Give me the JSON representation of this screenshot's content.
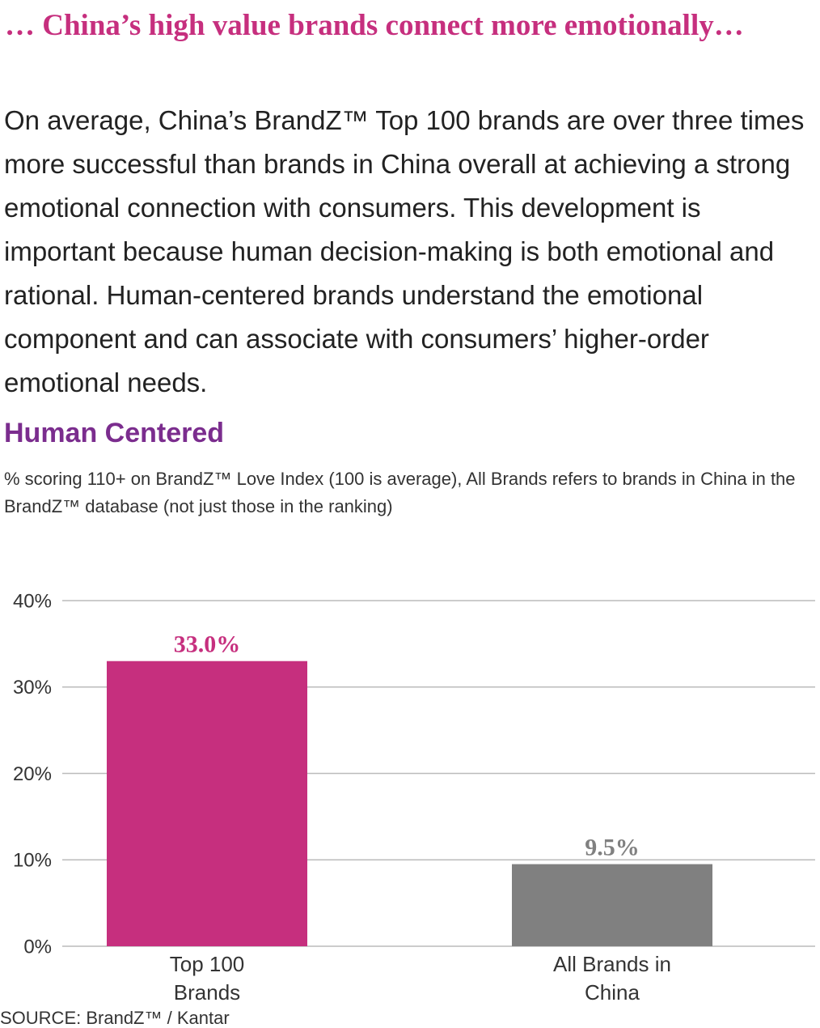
{
  "header": {
    "title": "… China’s high value brands connect more emotionally…",
    "body": "On average, China’s BrandZ™ Top 100 brands are over three times more successful than brands in China overall at achieving a strong emotional connection with consumers. This development is important because human decision-making is both emotional and rational. Human-centered brands understand the emotional component and can associate with consumers’ higher-order emotional needs."
  },
  "chart_data": {
    "type": "bar",
    "title": "Human Centered",
    "subtitle": "% scoring 110+ on BrandZ™ Love Index (100 is average), All Brands refers to brands in China in the BrandZ™ database (not just those in the ranking)",
    "categories": [
      "Top 100 Brands",
      "All Brands in China"
    ],
    "values": [
      33.0,
      9.5
    ],
    "value_labels": [
      "33.0%",
      "9.5%"
    ],
    "colors": [
      "#c62f7e",
      "#808080"
    ],
    "ylim": [
      0,
      40
    ],
    "yticks": [
      {
        "value": 0,
        "label": "0%"
      },
      {
        "value": 10,
        "label": "10%"
      },
      {
        "value": 20,
        "label": "20%"
      },
      {
        "value": 30,
        "label": "30%"
      },
      {
        "value": 40,
        "label": "40%"
      }
    ],
    "grid": true,
    "source": "SOURCE: BrandZ™ / Kantar"
  }
}
